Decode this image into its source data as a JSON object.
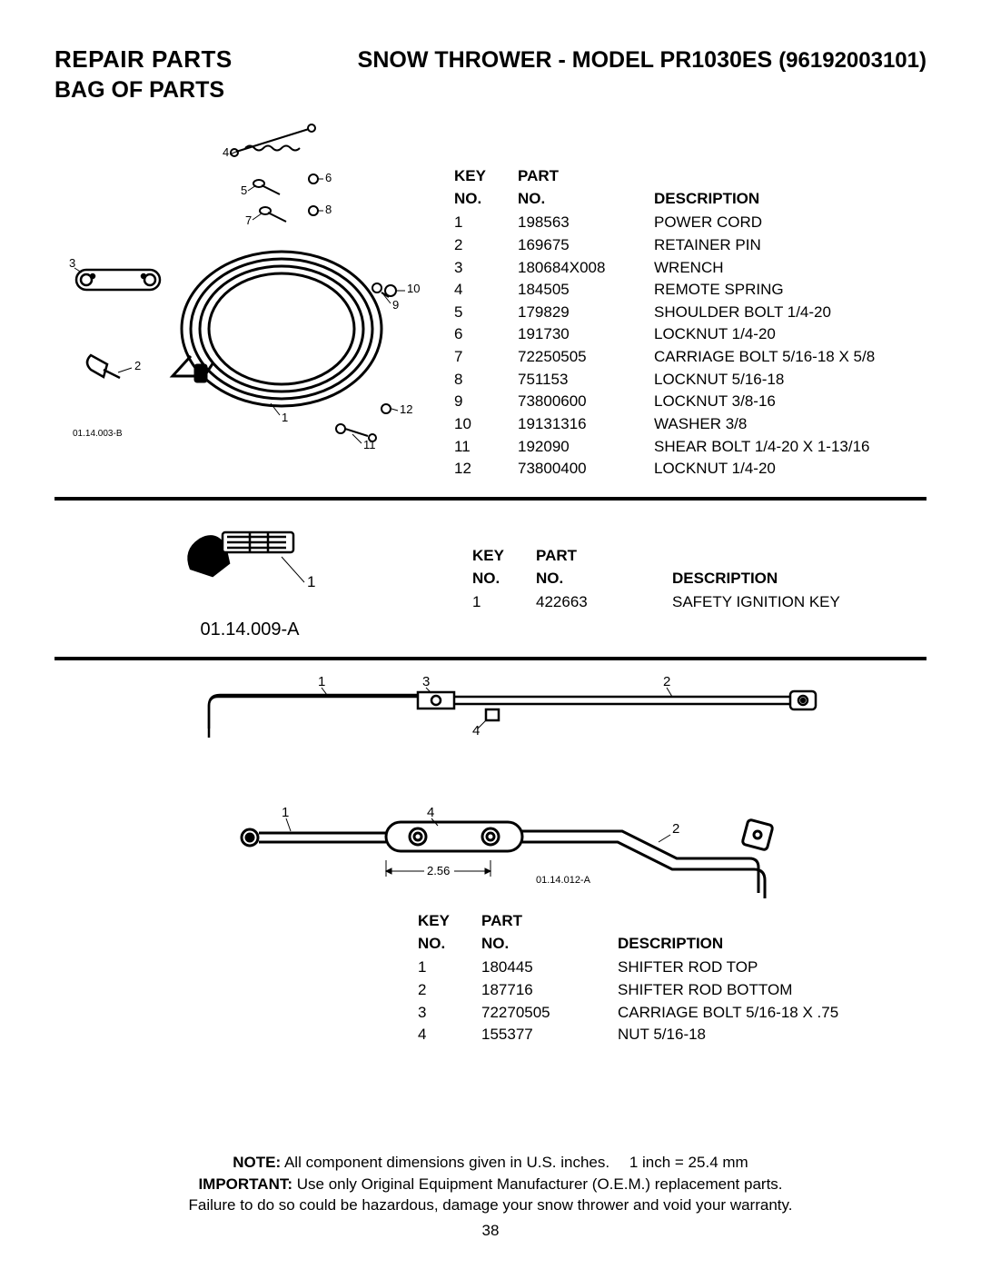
{
  "header": {
    "repair": "REPAIR PARTS",
    "model_prefix": "SNOW THROWER - MODEL",
    "model_id": "PR1030ES",
    "model_num": "(96192003101)",
    "bag": "BAG OF PARTS"
  },
  "tableHeaders": {
    "key1": "KEY",
    "key2": "NO.",
    "part1": "PART",
    "part2": "NO.",
    "desc": "DESCRIPTION"
  },
  "section1": {
    "diagram_code": "01.14.003-B",
    "callouts": [
      "1",
      "2",
      "3",
      "4",
      "5",
      "6",
      "7",
      "8",
      "9",
      "10",
      "11",
      "12"
    ],
    "rows": [
      {
        "k": "1",
        "p": "198563",
        "d": "POWER CORD"
      },
      {
        "k": "2",
        "p": "169675",
        "d": "RETAINER PIN"
      },
      {
        "k": "3",
        "p": "180684X008",
        "d": "WRENCH"
      },
      {
        "k": "4",
        "p": "184505",
        "d": "REMOTE SPRING"
      },
      {
        "k": "5",
        "p": "179829",
        "d": "SHOULDER BOLT 1/4-20"
      },
      {
        "k": "6",
        "p": "191730",
        "d": "LOCKNUT 1/4-20"
      },
      {
        "k": "7",
        "p": "72250505",
        "d": "CARRIAGE BOLT 5/16-18 X 5/8"
      },
      {
        "k": "8",
        "p": "751153",
        "d": "LOCKNUT 5/16-18"
      },
      {
        "k": "9",
        "p": "73800600",
        "d": "LOCKNUT 3/8-16"
      },
      {
        "k": "10",
        "p": "19131316",
        "d": "WASHER 3/8"
      },
      {
        "k": "11",
        "p": "192090",
        "d": "SHEAR BOLT 1/4-20 X 1-13/16"
      },
      {
        "k": "12",
        "p": "73800400",
        "d": "LOCKNUT 1/4-20"
      }
    ]
  },
  "section2": {
    "diagram_label": "01.14.009-A",
    "callout": "1",
    "rows": [
      {
        "k": "1",
        "p": "422663",
        "d": "SAFETY IGNITION KEY"
      }
    ]
  },
  "section3": {
    "diagram_code": "01.14.012-A",
    "dim": "2.56",
    "callouts_top": [
      "1",
      "2",
      "3",
      "4"
    ],
    "callouts_bottom": [
      "1",
      "2",
      "4"
    ],
    "rows": [
      {
        "k": "1",
        "p": "180445",
        "d": "SHIFTER ROD TOP"
      },
      {
        "k": "2",
        "p": "187716",
        "d": "SHIFTER ROD BOTTOM"
      },
      {
        "k": "3",
        "p": "72270505",
        "d": "CARRIAGE BOLT 5/16-18 X .75"
      },
      {
        "k": "4",
        "p": "155377",
        "d": "NUT 5/16-18"
      }
    ]
  },
  "footer": {
    "note_label": "NOTE:",
    "note_text": "All component dimensions given in U.S. inches.  1 inch = 25.4 mm",
    "imp_label": "IMPORTANT:",
    "imp_text": "Use only Original Equipment Manufacturer (O.E.M.) replacement parts.",
    "imp_text2": "Failure to do so could be hazardous, damage your snow thrower and void your warranty.",
    "page": "38"
  },
  "style": {
    "background": "#ffffff",
    "text": "#000000",
    "sep_color": "#000000",
    "sep_width": 4,
    "body_font_size": 17
  }
}
